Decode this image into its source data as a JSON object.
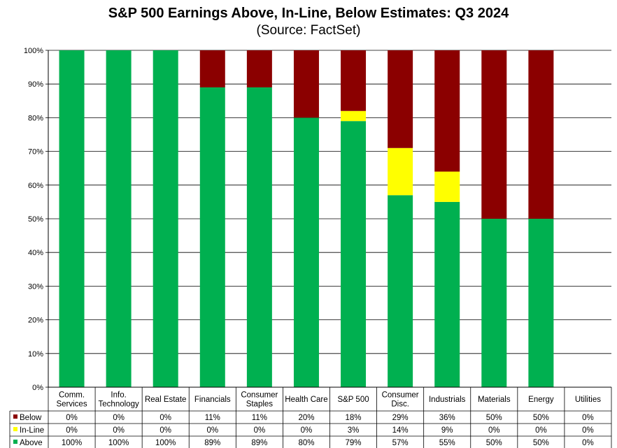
{
  "chart_data": {
    "type": "bar",
    "stacked": true,
    "title": "S&P 500 Earnings Above, In-Line, Below Estimates: Q3 2024",
    "subtitle": "(Source: FactSet)",
    "ylim": [
      0,
      100
    ],
    "y_ticks": [
      "0%",
      "10%",
      "20%",
      "30%",
      "40%",
      "50%",
      "60%",
      "70%",
      "80%",
      "90%",
      "100%"
    ],
    "categories": [
      [
        "Comm.",
        "Services"
      ],
      [
        "Info.",
        "Technology"
      ],
      [
        "Real Estate"
      ],
      [
        "Financials"
      ],
      [
        "Consumer",
        "Staples"
      ],
      [
        "Health Care"
      ],
      [
        "S&P 500"
      ],
      [
        "Consumer",
        "Disc."
      ],
      [
        "Industrials"
      ],
      [
        "Materials"
      ],
      [
        "Energy"
      ],
      [
        "Utilities"
      ]
    ],
    "series": [
      {
        "name": "Above",
        "color": "#00b050",
        "values": [
          100,
          100,
          100,
          89,
          89,
          80,
          79,
          57,
          55,
          50,
          50,
          0
        ],
        "labels": [
          "100%",
          "100%",
          "100%",
          "89%",
          "89%",
          "80%",
          "79%",
          "57%",
          "55%",
          "50%",
          "50%",
          "0%"
        ]
      },
      {
        "name": "In-Line",
        "color": "#ffff00",
        "values": [
          0,
          0,
          0,
          0,
          0,
          0,
          3,
          14,
          9,
          0,
          0,
          0
        ],
        "labels": [
          "0%",
          "0%",
          "0%",
          "0%",
          "0%",
          "0%",
          "3%",
          "14%",
          "9%",
          "0%",
          "0%",
          "0%"
        ]
      },
      {
        "name": "Below",
        "color": "#8b0000",
        "values": [
          0,
          0,
          0,
          11,
          11,
          20,
          18,
          29,
          36,
          50,
          50,
          0
        ],
        "labels": [
          "0%",
          "0%",
          "0%",
          "11%",
          "11%",
          "20%",
          "18%",
          "29%",
          "36%",
          "50%",
          "50%",
          "0%"
        ]
      }
    ],
    "table_row_order": [
      "Below",
      "In-Line",
      "Above"
    ],
    "grid": true,
    "legend": "data-table"
  }
}
